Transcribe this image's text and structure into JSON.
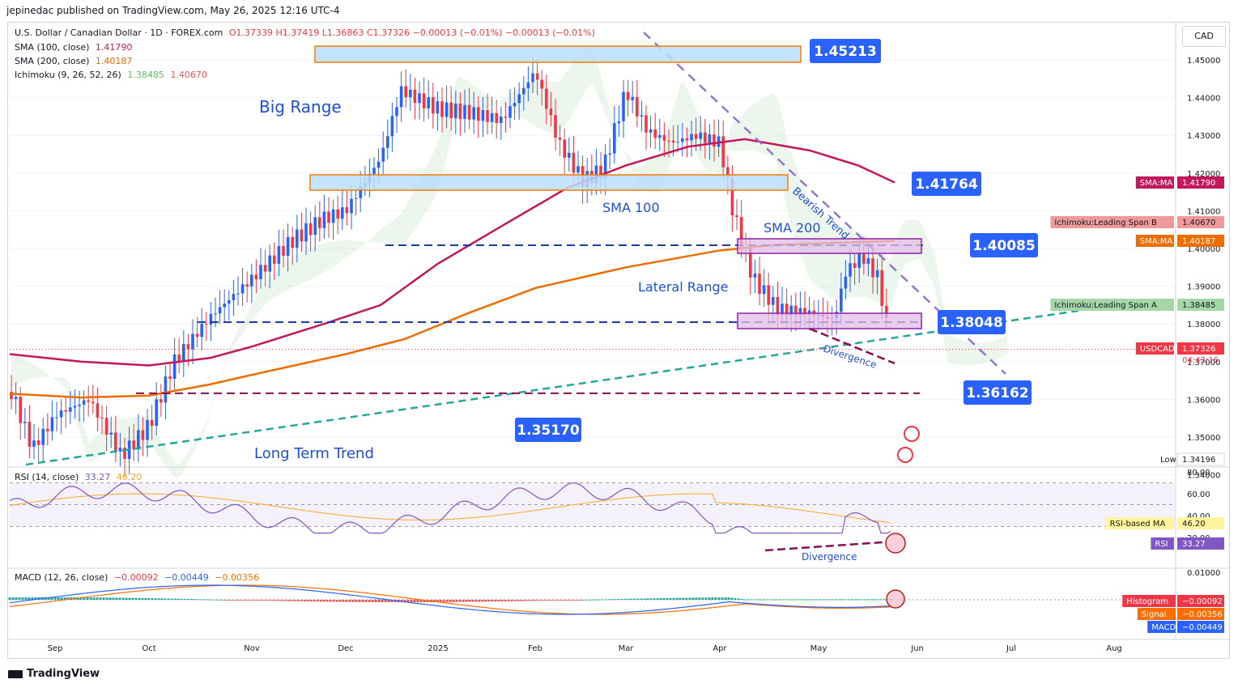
{
  "publisher": "jepinedac published on TradingView.com, May 26, 2025 12:16 UTC-4",
  "footer_logo": "TradingView",
  "currency": "CAD",
  "legend": {
    "symbol": "U.S. Dollar / Canadian Dollar · 1D · FOREX.com",
    "ohlc": "O1.37339 H1.37419 L1.36863 C1.37326 −0.00013 (−0.01%) −0.00013 (−0.01%)",
    "sma100_label": "SMA (100, close)",
    "sma100_value": "1.41790",
    "sma200_label": "SMA (200, close)",
    "sma200_value": "1.40187",
    "ichimoku_label": "Ichimoku (9, 26, 52, 26)",
    "ichimoku_a": "1.38485",
    "ichimoku_b": "1.40670",
    "rsi_label": "RSI (14, close)",
    "rsi_value": "33.27",
    "rsi_ma": "46.20",
    "macd_label": "MACD (12, 26, close)",
    "macd_h": "−0.00092",
    "macd_macd": "−0.00449",
    "macd_signal": "−0.00356"
  },
  "colors": {
    "up": "#2962ff",
    "down": "#f23645",
    "sma100": "#c2185b",
    "sma200": "#ef6c00",
    "trend": "#26a69a",
    "bearish": "#9575cd",
    "rsi": "#7e57c2",
    "macd": "#2962ff",
    "signal": "#ff6d00"
  },
  "chart_data": [
    {
      "type": "candlestick",
      "name": "USDCAD",
      "y_axis_ticks": [
        "1.45000",
        "1.44000",
        "1.43000",
        "1.42000",
        "1.41000",
        "1.40000",
        "1.39000",
        "1.38000",
        "1.37000",
        "1.36000",
        "1.35000",
        "1.34000"
      ],
      "ylim": [
        1.3419,
        1.46
      ],
      "x_axis_labels": [
        "Sep",
        "Oct",
        "Nov",
        "Dec",
        "2025",
        "Feb",
        "Mar",
        "Apr",
        "May",
        "Jun",
        "Jul",
        "Aug"
      ],
      "last_price": 1.37326,
      "countdown": "04:43:16",
      "low_label": "Low",
      "low_value": "1.34196",
      "price_tags": [
        {
          "label": "SMA:MA",
          "value": "1.41790",
          "color": "#c2185b"
        },
        {
          "label": "Ichimoku:Leading Span B",
          "value": "1.40670",
          "color": "#ef9a9a"
        },
        {
          "label": "SMA:MA",
          "value": "1.40187",
          "color": "#ef6c00"
        },
        {
          "label": "Ichimoku:Leading Span A",
          "value": "1.38485",
          "color": "#a5d6a7"
        },
        {
          "label": "USDCAD",
          "value": "1.37326",
          "color": "#f23645"
        }
      ],
      "levels": [
        {
          "label": "1.45213",
          "value": 1.45213
        },
        {
          "label": "1.41764",
          "value": 1.41764
        },
        {
          "label": "1.40085",
          "value": 1.40085
        },
        {
          "label": "1.38048",
          "value": 1.38048
        },
        {
          "label": "1.36162",
          "value": 1.36162
        },
        {
          "label": "1.35170",
          "value": 1.3517
        }
      ],
      "annotations": [
        "Big Range",
        "SMA 100",
        "SMA 200",
        "Lateral Range",
        "Bearish Trend",
        "Divergence",
        "Long Term Trend"
      ]
    },
    {
      "type": "line",
      "name": "RSI",
      "y_axis_ticks": [
        "80.00",
        "60.00",
        "40.00",
        "20.00"
      ],
      "ylim": [
        18,
        82
      ],
      "tags": [
        {
          "label": "RSI-based MA",
          "value": "46.20"
        },
        {
          "label": "RSI",
          "value": "33.27"
        }
      ],
      "annotation": "Divergence"
    },
    {
      "type": "line",
      "name": "MACD",
      "y_axis_ticks": [
        "0.01000"
      ],
      "tags": [
        {
          "label": "Histogram",
          "value": "−0.00092"
        },
        {
          "label": "Signal",
          "value": "−0.00356"
        },
        {
          "label": "MACD",
          "value": "−0.00449"
        }
      ]
    }
  ]
}
